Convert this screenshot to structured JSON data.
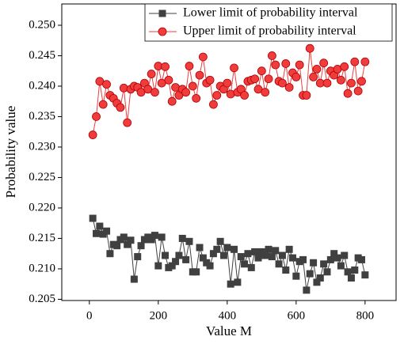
{
  "chart_data": {
    "type": "line",
    "xlabel": "Value M",
    "ylabel": "Probability value",
    "x": [
      10,
      20,
      30,
      40,
      50,
      60,
      70,
      80,
      90,
      100,
      110,
      120,
      130,
      140,
      150,
      160,
      170,
      180,
      190,
      200,
      210,
      220,
      230,
      240,
      250,
      260,
      270,
      280,
      290,
      300,
      310,
      320,
      330,
      340,
      350,
      360,
      370,
      380,
      390,
      400,
      410,
      420,
      430,
      440,
      450,
      460,
      470,
      480,
      490,
      500,
      510,
      520,
      530,
      540,
      550,
      560,
      570,
      580,
      590,
      600,
      610,
      620,
      630,
      640,
      650,
      660,
      670,
      680,
      690,
      700,
      710,
      720,
      730,
      740,
      750,
      760,
      770,
      780,
      790,
      800
    ],
    "series": [
      {
        "name": "Lower limit of probability interval",
        "color": "#404040",
        "marker": "square",
        "values": [
          0.2183,
          0.2158,
          0.217,
          0.2157,
          0.2162,
          0.2125,
          0.214,
          0.2138,
          0.2148,
          0.2152,
          0.214,
          0.2147,
          0.2083,
          0.212,
          0.2138,
          0.2148,
          0.2152,
          0.2148,
          0.2155,
          0.2105,
          0.2152,
          0.2122,
          0.2102,
          0.2105,
          0.2112,
          0.2122,
          0.215,
          0.2115,
          0.2145,
          0.2095,
          0.2095,
          0.2135,
          0.2118,
          0.211,
          0.2105,
          0.2125,
          0.2132,
          0.2145,
          0.2122,
          0.2135,
          0.2075,
          0.2132,
          0.2078,
          0.212,
          0.2108,
          0.2125,
          0.2102,
          0.2128,
          0.2118,
          0.2128,
          0.2122,
          0.2132,
          0.212,
          0.213,
          0.2108,
          0.2122,
          0.2098,
          0.2132,
          0.2118,
          0.2088,
          0.2112,
          0.2115,
          0.2065,
          0.2092,
          0.211,
          0.2078,
          0.2085,
          0.2108,
          0.2095,
          0.2115,
          0.2125,
          0.2118,
          0.2105,
          0.2122,
          0.2095,
          0.2085,
          0.2098,
          0.2118,
          0.2115,
          0.209
        ]
      },
      {
        "name": "Upper limit of probability interval",
        "color": "#f03c3c",
        "marker": "circle",
        "values": [
          0.232,
          0.235,
          0.2408,
          0.237,
          0.2403,
          0.2385,
          0.238,
          0.2372,
          0.2365,
          0.2397,
          0.234,
          0.2395,
          0.24,
          0.2398,
          0.239,
          0.2405,
          0.2395,
          0.242,
          0.239,
          0.2433,
          0.2405,
          0.2432,
          0.241,
          0.2375,
          0.2398,
          0.2385,
          0.2395,
          0.239,
          0.2433,
          0.24,
          0.238,
          0.2418,
          0.2448,
          0.2405,
          0.241,
          0.237,
          0.2385,
          0.24,
          0.2395,
          0.2405,
          0.2387,
          0.243,
          0.239,
          0.2395,
          0.2385,
          0.2408,
          0.241,
          0.2412,
          0.2395,
          0.2425,
          0.239,
          0.2412,
          0.245,
          0.2435,
          0.2408,
          0.2405,
          0.2437,
          0.2398,
          0.2422,
          0.2415,
          0.2435,
          0.2385,
          0.2385,
          0.2462,
          0.2415,
          0.2428,
          0.2405,
          0.2438,
          0.2405,
          0.2425,
          0.2418,
          0.2428,
          0.241,
          0.2432,
          0.2388,
          0.2405,
          0.244,
          0.2392,
          0.2408,
          0.244
        ]
      }
    ],
    "xlim": [
      -80,
      890
    ],
    "xticks": [
      0,
      200,
      400,
      600,
      800
    ],
    "ylim": [
      0.2048,
      0.2535
    ],
    "yticks": [
      0.205,
      {
        "value": 0.21,
        "label": "0.210"
      },
      0.215,
      {
        "value": 0.22,
        "label": "0.220"
      },
      0.225,
      {
        "value": 0.23,
        "label": "0.230"
      },
      0.235,
      {
        "value": 0.24,
        "label": "0.240"
      },
      0.245,
      {
        "value": 0.25,
        "label": "0.250"
      }
    ],
    "legend": "upper right"
  }
}
